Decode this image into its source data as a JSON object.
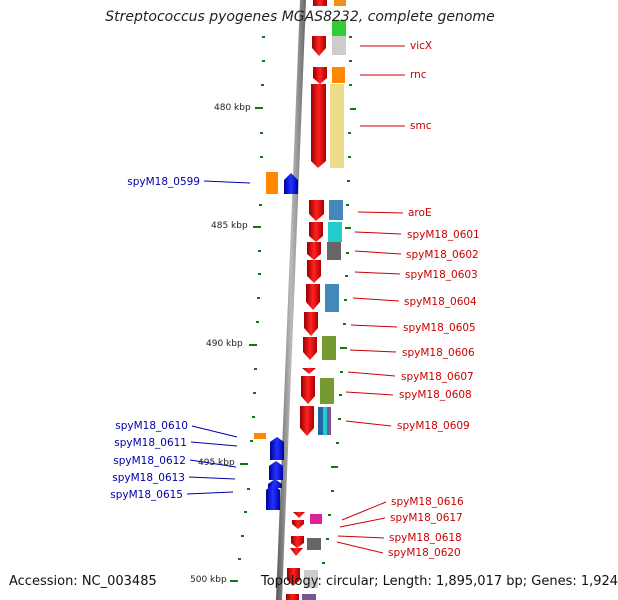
{
  "title": "Streptococcus pyogenes MGAS8232, complete genome",
  "accession_text": "Accession: NC_003485",
  "topology_text": "Topology: circular; Length: 1,895,017 bp; Genes: 1,924",
  "ruler_labels": [
    "480 kbp",
    "485 kbp",
    "490 kbp",
    "495 kbp",
    "500 kbp"
  ],
  "right_genes": [
    "vicX",
    "rnc",
    "smc",
    "aroE",
    "spyM18_0601",
    "spyM18_0602",
    "spyM18_0603",
    "spyM18_0604",
    "spyM18_0605",
    "spyM18_0606",
    "spyM18_0607",
    "spyM18_0608",
    "spyM18_0609",
    "spyM18_0616",
    "spyM18_0617",
    "spyM18_0618",
    "spyM18_0620"
  ],
  "left_genes": [
    "spyM18_0599",
    "spyM18_0610",
    "spyM18_0611",
    "spyM18_0612",
    "spyM18_0613",
    "spyM18_0615"
  ],
  "colors": {
    "forward_arrow": "#ee0000",
    "reverse_arrow": "#0000ee",
    "right_label": "#cc0000",
    "left_label": "#0000aa",
    "tick": "#117711",
    "backbone": "#888888"
  }
}
